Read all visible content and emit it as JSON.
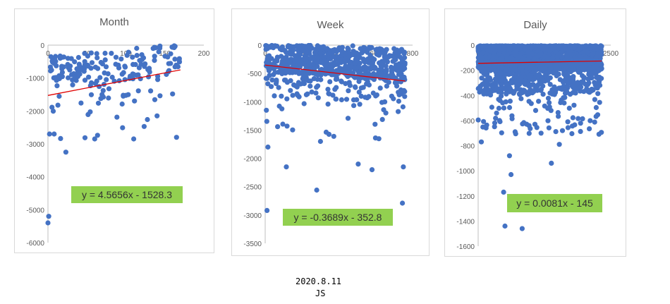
{
  "colors": {
    "point": "#4472C4",
    "trend": "#E00000",
    "eqbox": "#92D050",
    "eqtext": "#333333",
    "grid": "#d9d9d9",
    "axis": "#595959"
  },
  "chart_data": [
    {
      "type": "scatter",
      "title": "Month",
      "xlim": [
        0,
        200
      ],
      "ylim": [
        -6000,
        0
      ],
      "xticks": [
        0,
        50,
        100,
        150,
        200
      ],
      "yticks": [
        0,
        -1000,
        -2000,
        -3000,
        -4000,
        -5000,
        -6000
      ],
      "trendline": {
        "slope": 4.5656,
        "intercept": -1528.3,
        "x_range": [
          0,
          170
        ]
      },
      "equation": "y = 4.5656x - 1528.3",
      "n_points": 190,
      "seed": 11,
      "sample_points": [
        [
          0,
          -5400
        ],
        [
          1,
          -5200
        ],
        [
          2,
          -2700
        ],
        [
          8,
          -2700
        ],
        [
          23,
          -3250
        ],
        [
          60,
          -2850
        ],
        [
          110,
          -2850
        ],
        [
          165,
          -2800
        ],
        [
          140,
          -2150
        ],
        [
          135,
          -100
        ]
      ]
    },
    {
      "type": "scatter",
      "title": "Week",
      "xlim": [
        0,
        800
      ],
      "ylim": [
        -3500,
        0
      ],
      "xticks": [
        0,
        200,
        400,
        600,
        800
      ],
      "yticks": [
        0,
        -500,
        -1000,
        -1500,
        -2000,
        -2500,
        -3000,
        -3500
      ],
      "trendline": {
        "slope": -0.3689,
        "intercept": -352.8,
        "x_range": [
          0,
          760
        ]
      },
      "equation": "y = -0.3689x - 352.8",
      "n_points": 750,
      "seed": 7,
      "sample_points": [
        [
          10,
          -2920
        ],
        [
          280,
          -2560
        ],
        [
          745,
          -2790
        ],
        [
          115,
          -2150
        ],
        [
          505,
          -2100
        ],
        [
          580,
          -2200
        ],
        [
          750,
          -2150
        ],
        [
          15,
          -1800
        ],
        [
          300,
          -1700
        ]
      ]
    },
    {
      "type": "scatter",
      "title": "Daily",
      "xlim": [
        0,
        2500
      ],
      "ylim": [
        -1600,
        0
      ],
      "xticks": [
        0,
        500,
        1000,
        1500,
        2000,
        2500
      ],
      "yticks": [
        0,
        -200,
        -400,
        -600,
        -800,
        -1000,
        -1200,
        -1400,
        -1600
      ],
      "trendline": {
        "slope": 0.0081,
        "intercept": -145,
        "x_range": [
          0,
          2330
        ]
      },
      "equation": "y = 0.0081x - 145",
      "n_points": 2200,
      "seed": 3,
      "sample_points": [
        [
          480,
          -1170
        ],
        [
          505,
          -1440
        ],
        [
          830,
          -1460
        ],
        [
          620,
          -1030
        ],
        [
          590,
          -880
        ],
        [
          1380,
          -940
        ],
        [
          1530,
          -790
        ],
        [
          1070,
          -630
        ],
        [
          60,
          -770
        ]
      ]
    }
  ],
  "footer": {
    "date": "2020.8.11",
    "author": "JS"
  }
}
